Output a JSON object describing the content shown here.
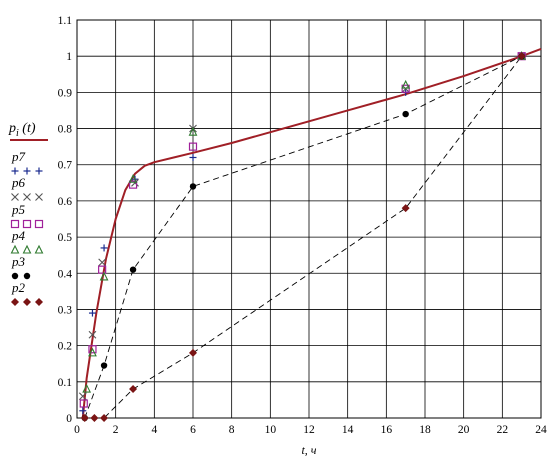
{
  "chart_data": {
    "type": "line",
    "xlabel": "t, ч",
    "ylabel": "",
    "xlim": [
      0,
      24
    ],
    "ylim": [
      0,
      1.1
    ],
    "xticks": [
      0,
      2,
      4,
      6,
      8,
      10,
      12,
      14,
      16,
      18,
      20,
      22,
      24
    ],
    "yticks": [
      0,
      0.1,
      0.2,
      0.3,
      0.4,
      0.5,
      0.6,
      0.7,
      0.8,
      0.9,
      1,
      1.1
    ],
    "x_tick_labels": [
      "0",
      "2",
      "4",
      "6",
      "8",
      "10",
      "12",
      "14",
      "16",
      "18",
      "20",
      "22",
      "24"
    ],
    "y_tick_labels": [
      "0",
      "0.1",
      "0.2",
      "0.3",
      "0.4",
      "0.5",
      "0.6",
      "0.7",
      "0.8",
      "0.9",
      "1",
      "1.1"
    ],
    "grid": true,
    "legend": {
      "placement": "left-outside",
      "main_label": "pi (t)",
      "main_base": "p",
      "main_sub": "i",
      "main_args": " (t)",
      "entries": [
        {
          "label": "p7",
          "marker_text": "+ + +"
        },
        {
          "label": "p6",
          "marker_text": "× × ×"
        },
        {
          "label": "p5",
          "marker_text": "□ □ □"
        },
        {
          "label": "p4",
          "marker_text": "△ △ △"
        },
        {
          "label": "p3",
          "marker_text": "● ●"
        },
        {
          "label": "p2",
          "marker_text": "◆ ◆ ◆"
        }
      ]
    },
    "series": [
      {
        "name": "pi (t)",
        "style": "solid-curve",
        "color": "#a01f26",
        "x": [
          0.3,
          0.5,
          1.0,
          1.5,
          2.0,
          2.5,
          3.0,
          3.5,
          4.0,
          5.0,
          6.0,
          8.0,
          10.0,
          12.0,
          14.0,
          16.0,
          17.0,
          20.0,
          23.0,
          24.0
        ],
        "y": [
          0.0,
          0.11,
          0.29,
          0.44,
          0.55,
          0.63,
          0.675,
          0.697,
          0.707,
          0.72,
          0.733,
          0.76,
          0.79,
          0.82,
          0.85,
          0.88,
          0.895,
          0.945,
          1.0,
          1.02
        ]
      },
      {
        "name": "p7",
        "marker": "plus",
        "color": "#1a2b8f",
        "x": [
          0.3,
          0.8,
          1.4,
          3.0,
          6.0,
          17.0,
          23.0
        ],
        "y": [
          0.02,
          0.29,
          0.47,
          0.66,
          0.72,
          0.9,
          1.0
        ]
      },
      {
        "name": "p6",
        "marker": "cross",
        "color": "#555555",
        "x": [
          0.3,
          0.8,
          1.3,
          3.0,
          6.0,
          17.0,
          23.0
        ],
        "y": [
          0.06,
          0.23,
          0.43,
          0.65,
          0.8,
          0.91,
          1.0
        ]
      },
      {
        "name": "p5",
        "marker": "square",
        "color": "#a0219a",
        "x": [
          0.35,
          0.8,
          1.3,
          2.9,
          6.0,
          17.0,
          23.0
        ],
        "y": [
          0.04,
          0.19,
          0.41,
          0.645,
          0.75,
          0.91,
          1.0
        ]
      },
      {
        "name": "p4",
        "marker": "triangle",
        "color": "#2f7a2f",
        "x": [
          0.5,
          0.8,
          1.4,
          2.9,
          6.0,
          17.0,
          23.0
        ],
        "y": [
          0.08,
          0.18,
          0.39,
          0.66,
          0.79,
          0.92,
          1.0
        ]
      },
      {
        "name": "p3",
        "marker": "circle",
        "color": "#000000",
        "line": "dashed",
        "x": [
          0.4,
          1.4,
          2.9,
          6.0,
          17.0,
          23.0
        ],
        "y": [
          0.0,
          0.145,
          0.41,
          0.64,
          0.84,
          1.0
        ]
      },
      {
        "name": "p2",
        "marker": "diamond",
        "color": "#7a1414",
        "line": "dashed",
        "x": [
          0.4,
          0.9,
          1.4,
          2.9,
          6.0,
          17.0,
          23.0
        ],
        "y": [
          0.0,
          0.0,
          0.0,
          0.08,
          0.18,
          0.58,
          1.0
        ]
      }
    ]
  }
}
